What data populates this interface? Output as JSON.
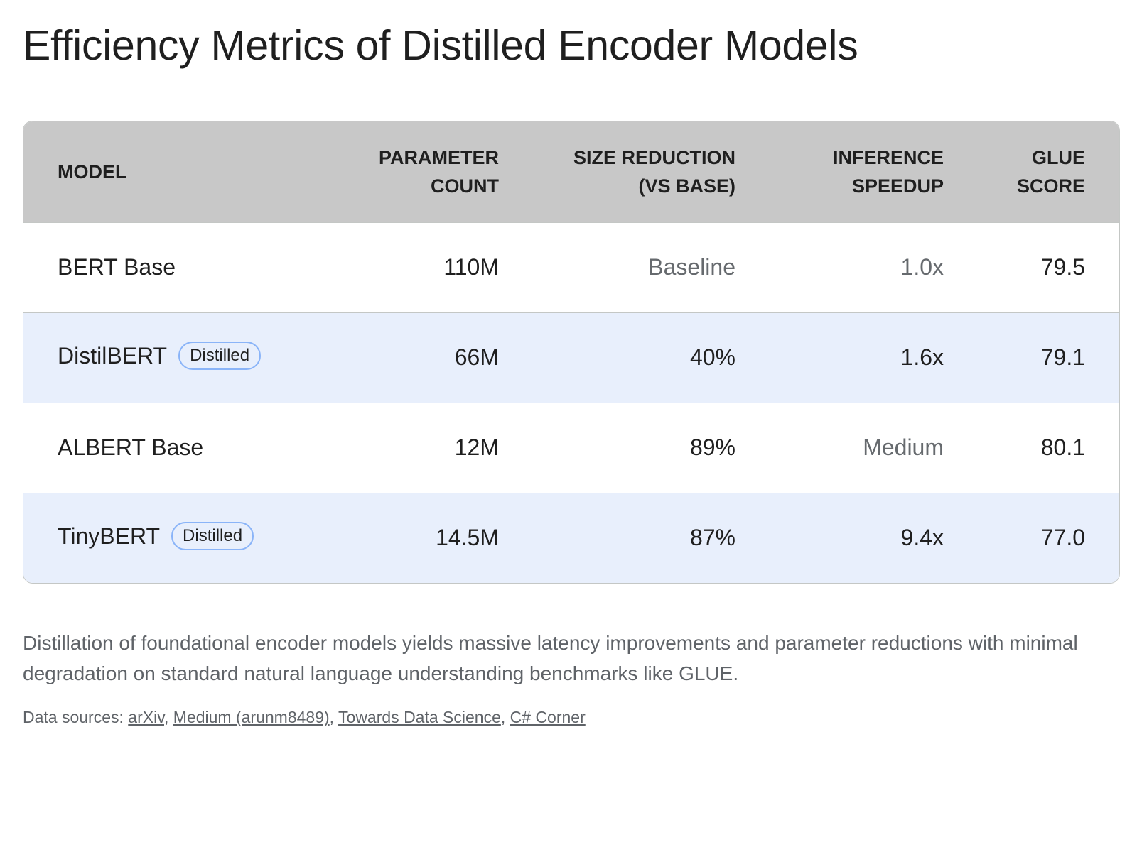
{
  "title": "Efficiency Metrics of Distilled Encoder Models",
  "table": {
    "headers": [
      {
        "line1": "MODEL",
        "line2": ""
      },
      {
        "line1": "PARAMETER",
        "line2": "COUNT"
      },
      {
        "line1": "SIZE REDUCTION",
        "line2": "(VS BASE)"
      },
      {
        "line1": "INFERENCE",
        "line2": "SPEEDUP"
      },
      {
        "line1": "GLUE",
        "line2": "SCORE"
      }
    ],
    "rows": [
      {
        "model": "BERT Base",
        "badge": "",
        "params": "110M",
        "size_reduction": "Baseline",
        "speedup": "1.0x",
        "glue": "79.5"
      },
      {
        "model": "DistilBERT",
        "badge": "Distilled",
        "params": "66M",
        "size_reduction": "40%",
        "speedup": "1.6x",
        "glue": "79.1"
      },
      {
        "model": "ALBERT Base",
        "badge": "",
        "params": "12M",
        "size_reduction": "89%",
        "speedup": "Medium",
        "glue": "80.1"
      },
      {
        "model": "TinyBERT",
        "badge": "Distilled",
        "params": "14.5M",
        "size_reduction": "87%",
        "speedup": "9.4x",
        "glue": "77.0"
      }
    ]
  },
  "description": "Distillation of foundational encoder models yields massive latency improvements and parameter reductions with minimal degradation on standard natural language understanding benchmarks like GLUE.",
  "sources": {
    "label": "Data sources: ",
    "links": [
      "arXiv",
      "Medium (arunm8489)",
      "Towards Data Science",
      "C# Corner"
    ],
    "separator": ", "
  },
  "colors": {
    "header_bg": "#c8c8c8",
    "highlight_row_bg": "#e8effc",
    "badge_border": "#8ab4f8",
    "muted_text": "#666a6e"
  }
}
